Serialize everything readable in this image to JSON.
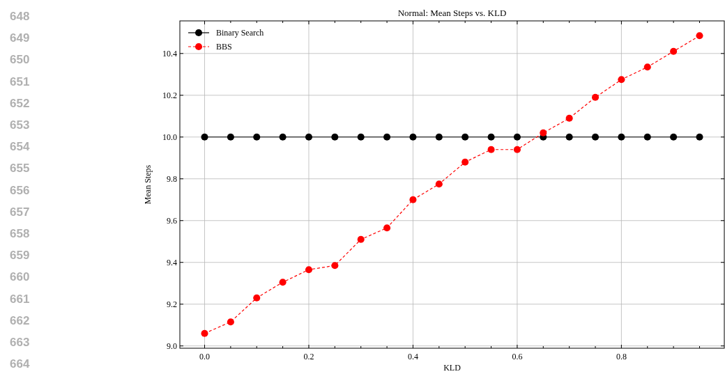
{
  "chart_data": {
    "type": "line",
    "title": "Normal: Mean Steps vs. KLD",
    "xlabel": "KLD",
    "ylabel": "Mean Steps",
    "x": [
      0,
      0.05,
      0.1,
      0.15,
      0.2,
      0.25,
      0.3,
      0.35,
      0.4,
      0.45,
      0.5,
      0.55,
      0.6,
      0.65,
      0.7,
      0.75,
      0.8,
      0.85,
      0.9,
      0.95
    ],
    "series": [
      {
        "name": "Binary Search",
        "color": "#000000",
        "line_style": "solid",
        "values": [
          10,
          10,
          10,
          10,
          10,
          10,
          10,
          10,
          10,
          10,
          10,
          10,
          10,
          10,
          10,
          10,
          10,
          10,
          10,
          10
        ]
      },
      {
        "name": "BBS",
        "color": "#ff0000",
        "line_style": "dashed",
        "values": [
          9.06,
          9.115,
          9.23,
          9.305,
          9.365,
          9.385,
          9.51,
          9.565,
          9.7,
          9.775,
          9.88,
          9.94,
          9.94,
          10.02,
          10.09,
          10.19,
          10.275,
          10.335,
          10.41,
          10.485
        ]
      }
    ],
    "xlim": [
      -0.0475,
      0.9975
    ],
    "ylim": [
      8.989,
      10.556
    ],
    "xticks": [
      {
        "value": 0,
        "label": "0.0"
      },
      {
        "value": 0.05,
        "label": null
      },
      {
        "value": 0.1,
        "label": null
      },
      {
        "value": 0.15,
        "label": null
      },
      {
        "value": 0.2,
        "label": "0.2"
      },
      {
        "value": 0.25,
        "label": null
      },
      {
        "value": 0.3,
        "label": null
      },
      {
        "value": 0.35,
        "label": null
      },
      {
        "value": 0.4,
        "label": "0.4"
      },
      {
        "value": 0.45,
        "label": null
      },
      {
        "value": 0.5,
        "label": null
      },
      {
        "value": 0.55,
        "label": null
      },
      {
        "value": 0.6,
        "label": "0.6"
      },
      {
        "value": 0.65,
        "label": null
      },
      {
        "value": 0.7,
        "label": null
      },
      {
        "value": 0.75,
        "label": null
      },
      {
        "value": 0.8,
        "label": "0.8"
      },
      {
        "value": 0.85,
        "label": null
      },
      {
        "value": 0.9,
        "label": null
      },
      {
        "value": 0.95,
        "label": null
      }
    ],
    "yticks": [
      {
        "value": 9,
        "label": "9.0"
      },
      {
        "value": 9.2,
        "label": "9.2"
      },
      {
        "value": 9.4,
        "label": "9.4"
      },
      {
        "value": 9.6,
        "label": "9.6"
      },
      {
        "value": 9.8,
        "label": "9.8"
      },
      {
        "value": 10,
        "label": "10.0"
      },
      {
        "value": 10.2,
        "label": "10.2"
      },
      {
        "value": 10.4,
        "label": "10.4"
      }
    ],
    "grid": true,
    "legend": "top left",
    "marker": "circle",
    "annotations": [
      "648",
      "649",
      "650",
      "651",
      "652",
      "653",
      "654",
      "655",
      "656",
      "657",
      "658",
      "659",
      "660",
      "661",
      "662",
      "663",
      "664"
    ]
  }
}
